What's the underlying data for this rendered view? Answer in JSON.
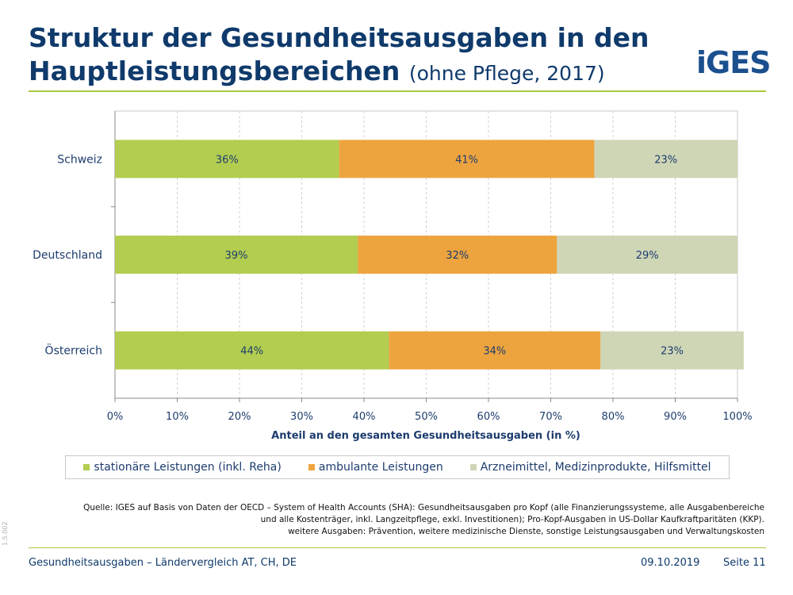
{
  "header": {
    "title": "Struktur der Gesundheitsausgaben in den Hauptleistungsbereichen",
    "subtitle": "(ohne Pflege, 2017)",
    "logo_text": "iGES",
    "accent_color": "#a8c83c"
  },
  "chart_data": {
    "type": "bar",
    "orientation": "horizontal",
    "stacked": true,
    "categories": [
      "Schweiz",
      "Deutschland",
      "Österreich"
    ],
    "series": [
      {
        "name": "stationäre Leistungen (inkl. Reha)",
        "color": "#b2cd4f",
        "values": [
          36,
          39,
          44
        ],
        "labels": [
          "36%",
          "39%",
          "44%"
        ]
      },
      {
        "name": "ambulante Leistungen",
        "color": "#eda43e",
        "values": [
          41,
          32,
          34
        ],
        "labels": [
          "41%",
          "32%",
          "34%"
        ]
      },
      {
        "name": "Arzneimittel, Medizinprodukte, Hilfsmittel",
        "color": "#cfd6b6",
        "values": [
          23,
          29,
          23
        ],
        "labels": [
          "23%",
          "29%",
          "23%"
        ]
      }
    ],
    "xlabel": "Anteil an den gesamten Gesundheitsausgaben (in %)",
    "xlim": [
      0,
      100
    ],
    "xticks": [
      "0%",
      "10%",
      "20%",
      "30%",
      "40%",
      "50%",
      "60%",
      "70%",
      "80%",
      "90%",
      "100%"
    ],
    "grid": "vertical dashed",
    "legend_position": "bottom"
  },
  "source": {
    "line1": "Quelle: IGES auf Basis von Daten der OECD – System of Health Accounts (SHA): Gesundheitsausgaben pro Kopf (alle Finanzierungssysteme, alle Ausgabenbereiche",
    "line2": "und alle Kostenträger, inkl. Langzeitpflege, exkl. Investitionen); Pro-Kopf-Ausgaben in US-Dollar Kaufkraftparitäten (KKP).",
    "line3": "weitere Ausgaben: Prävention, weitere medizinische Dienste, sonstige Leistungsausgaben und Verwaltungskosten"
  },
  "footer": {
    "side_code": "1.5.002",
    "left": "Gesundheitsausgaben – Ländervergleich AT, CH, DE",
    "date": "09.10.2019",
    "page": "Seite 11"
  }
}
